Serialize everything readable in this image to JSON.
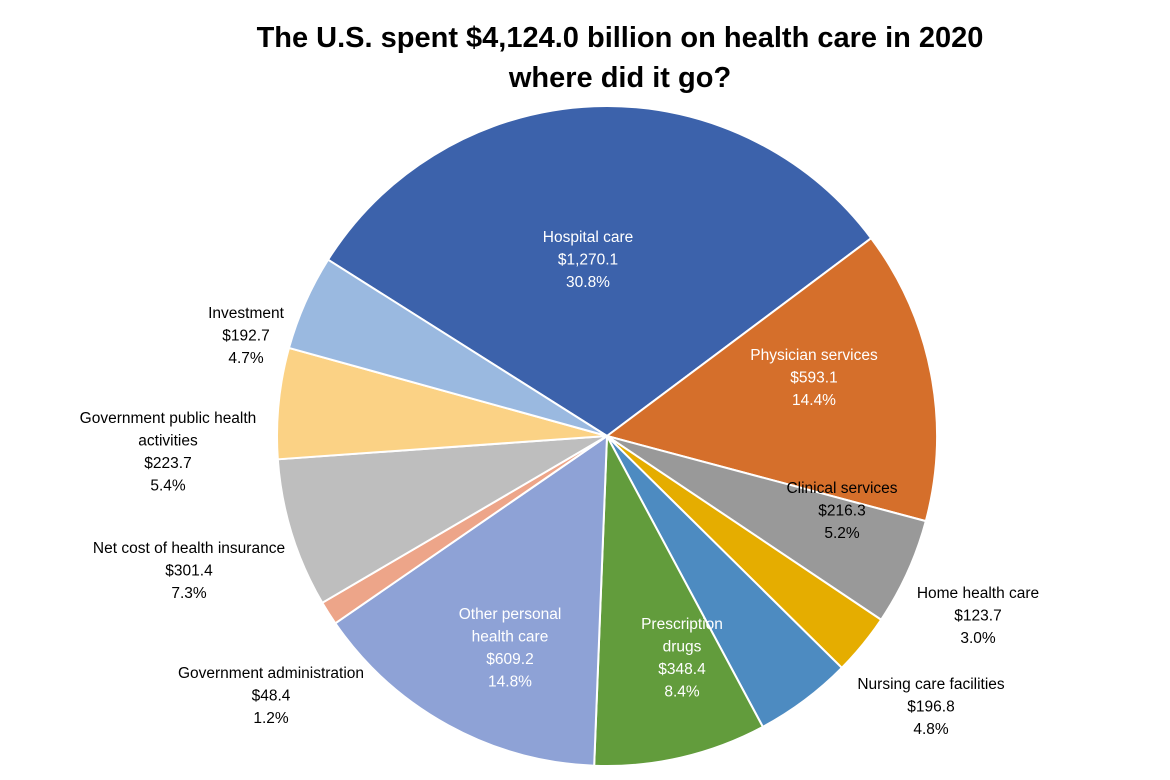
{
  "chart_data": {
    "type": "pie",
    "title": "The U.S. spent $4,124.0 billion on health care in 2020",
    "subtitle": "where did it go?",
    "slices": [
      {
        "label": [
          "Hospital care"
        ],
        "value": 1270.1,
        "value_text": "$1,270.1",
        "percent_text": "30.8%",
        "color": "#3c62ab",
        "label_color": "#ffffff"
      },
      {
        "label": [
          "Physician services"
        ],
        "value": 593.1,
        "value_text": "$593.1",
        "percent_text": "14.4%",
        "color": "#d56f2b",
        "label_color": "#ffffff"
      },
      {
        "label": [
          "Clinical services"
        ],
        "value": 216.3,
        "value_text": "$216.3",
        "percent_text": "5.2%",
        "color": "#999999",
        "label_color": "#000000"
      },
      {
        "label": [
          "Home health care"
        ],
        "value": 123.7,
        "value_text": "$123.7",
        "percent_text": "3.0%",
        "color": "#e5ad00",
        "label_color": "#000000"
      },
      {
        "label": [
          "Nursing care facilities"
        ],
        "value": 196.8,
        "value_text": "$196.8",
        "percent_text": "4.8%",
        "color": "#4d8bc1",
        "label_color": "#000000"
      },
      {
        "label": [
          "Prescription",
          "drugs"
        ],
        "value": 348.4,
        "value_text": "$348.4",
        "percent_text": "8.4%",
        "color": "#629c3c",
        "label_color": "#ffffff"
      },
      {
        "label": [
          "Other personal",
          "health care"
        ],
        "value": 609.2,
        "value_text": "$609.2",
        "percent_text": "14.8%",
        "color": "#8ea2d6",
        "label_color": "#ffffff"
      },
      {
        "label": [
          "Government administration"
        ],
        "value": 48.4,
        "value_text": "$48.4",
        "percent_text": "1.2%",
        "color": "#eda589",
        "label_color": "#000000"
      },
      {
        "label": [
          "Net cost of health insurance"
        ],
        "value": 301.4,
        "value_text": "$301.4",
        "percent_text": "7.3%",
        "color": "#bebebe",
        "label_color": "#000000"
      },
      {
        "label": [
          "Government public health",
          "activities"
        ],
        "value": 223.7,
        "value_text": "$223.7",
        "percent_text": "5.4%",
        "color": "#fbd285",
        "label_color": "#000000"
      },
      {
        "label": [
          "Investment"
        ],
        "value": 192.7,
        "value_text": "$192.7",
        "percent_text": "4.7%",
        "color": "#9ab9e0",
        "label_color": "#000000"
      }
    ]
  }
}
